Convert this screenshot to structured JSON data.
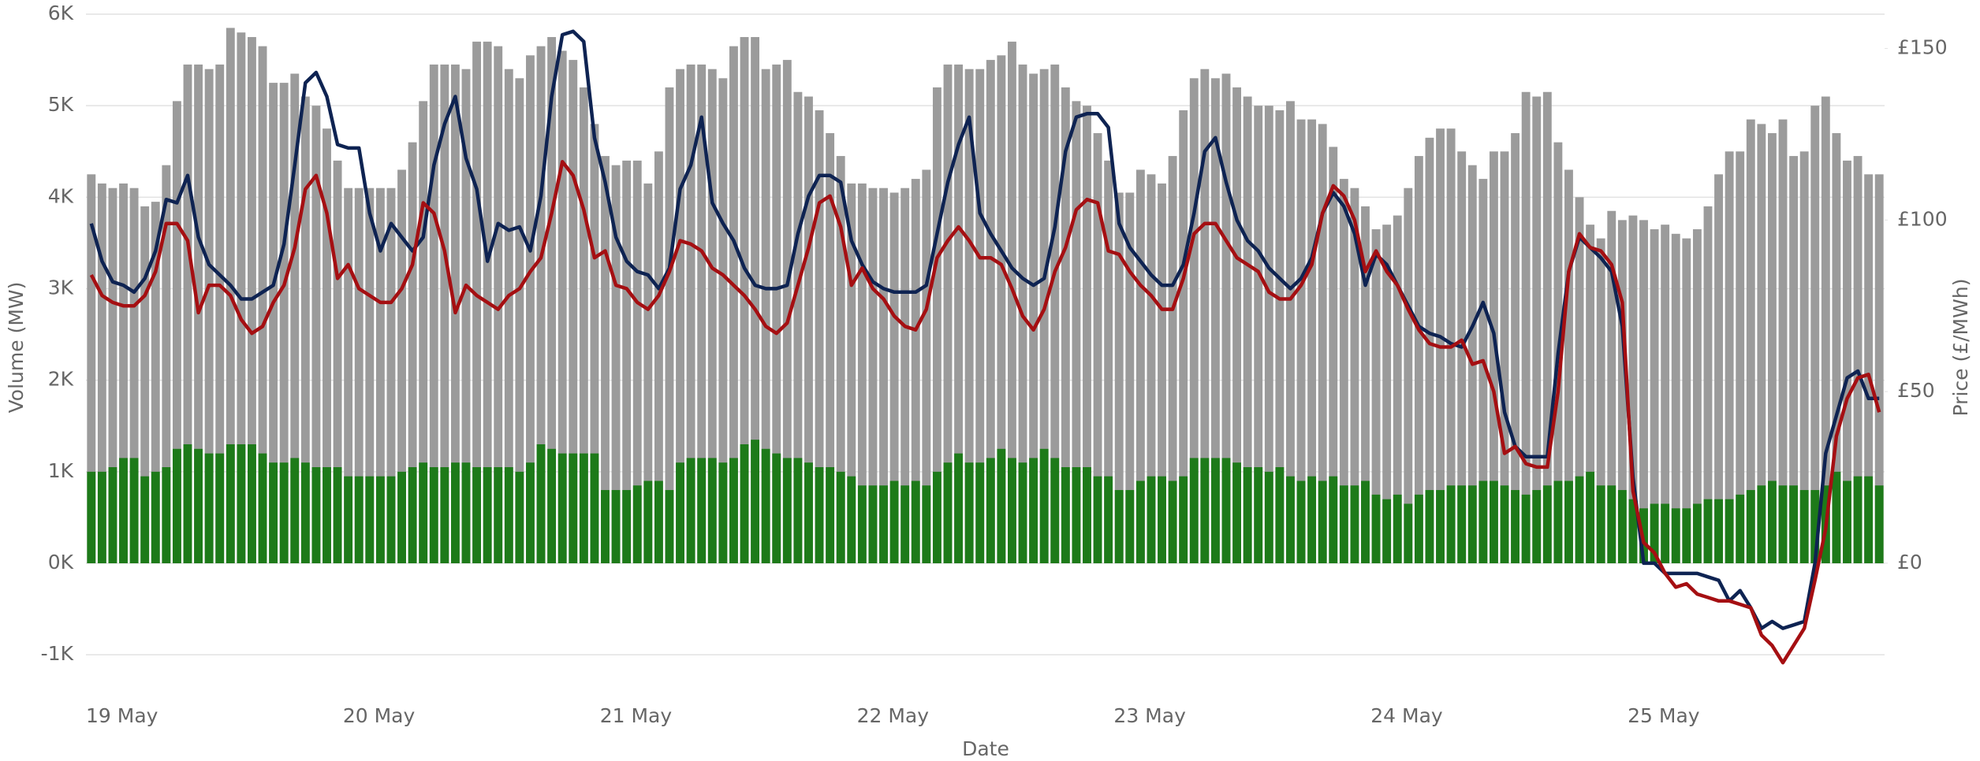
{
  "chart_data": {
    "type": "bar",
    "x_label": "Date",
    "y_label": "Volume (MW)",
    "y2_label": "Price (£/MWh)",
    "categories": [
      "19 May",
      null,
      null,
      null,
      null,
      null,
      null,
      null,
      null,
      null,
      null,
      null,
      null,
      null,
      null,
      null,
      null,
      null,
      null,
      null,
      null,
      null,
      null,
      null,
      "20 May",
      null,
      null,
      null,
      null,
      null,
      null,
      null,
      null,
      null,
      null,
      null,
      null,
      null,
      null,
      null,
      null,
      null,
      null,
      null,
      null,
      null,
      null,
      null,
      "21 May",
      null,
      null,
      null,
      null,
      null,
      null,
      null,
      null,
      null,
      null,
      null,
      null,
      null,
      null,
      null,
      null,
      null,
      null,
      null,
      null,
      null,
      null,
      null,
      "22 May",
      null,
      null,
      null,
      null,
      null,
      null,
      null,
      null,
      null,
      null,
      null,
      null,
      null,
      null,
      null,
      null,
      null,
      null,
      null,
      null,
      null,
      null,
      null,
      "23 May",
      null,
      null,
      null,
      null,
      null,
      null,
      null,
      null,
      null,
      null,
      null,
      null,
      null,
      null,
      null,
      null,
      null,
      null,
      null,
      null,
      null,
      null,
      null,
      "24 May",
      null,
      null,
      null,
      null,
      null,
      null,
      null,
      null,
      null,
      null,
      null,
      null,
      null,
      null,
      null,
      null,
      null,
      null,
      null,
      null,
      null,
      null,
      null,
      "25 May",
      null,
      null,
      null,
      null,
      null,
      null,
      null,
      null,
      null,
      null,
      null,
      null,
      null,
      null,
      null,
      null,
      null,
      null,
      null,
      null,
      null,
      null,
      null
    ],
    "ylim": [
      -1300,
      6000
    ],
    "yticks": [
      {
        "value": -1000,
        "label": "-1K"
      },
      {
        "value": 0,
        "label": "0K"
      },
      {
        "value": 1000,
        "label": "1K"
      },
      {
        "value": 2000,
        "label": "2K"
      },
      {
        "value": 3000,
        "label": "3K"
      },
      {
        "value": 4000,
        "label": "4K"
      },
      {
        "value": 5000,
        "label": "5K"
      },
      {
        "value": 6000,
        "label": "6K"
      }
    ],
    "y2lim": [
      -34.7,
      160
    ],
    "y2ticks": [
      {
        "value": 0,
        "label": "£0"
      },
      {
        "value": 50,
        "label": "£50"
      },
      {
        "value": 100,
        "label": "£100"
      },
      {
        "value": 150,
        "label": "£150"
      }
    ],
    "grid": true,
    "series": [
      {
        "type": "bar",
        "color": "#9b9b9b",
        "values": [
          4250,
          4150,
          4100,
          4150,
          4100,
          3900,
          3950,
          4350,
          5050,
          5450,
          5450,
          5400,
          5450,
          5850,
          5800,
          5750,
          5650,
          5250,
          5250,
          5350,
          5100,
          5000,
          4750,
          4400,
          4100,
          4100,
          4100,
          4100,
          4100,
          4300,
          4600,
          5050,
          5450,
          5450,
          5450,
          5400,
          5700,
          5700,
          5650,
          5400,
          5300,
          5550,
          5650,
          5750,
          5600,
          5500,
          5200,
          4800,
          4450,
          4350,
          4400,
          4400,
          4150,
          4500,
          5200,
          5400,
          5450,
          5450,
          5400,
          5300,
          5650,
          5750,
          5750,
          5400,
          5450,
          5500,
          5150,
          5100,
          4950,
          4700,
          4450,
          4150,
          4150,
          4100,
          4100,
          4050,
          4100,
          4200,
          4300,
          5200,
          5450,
          5450,
          5400,
          5400,
          5500,
          5550,
          5700,
          5450,
          5350,
          5400,
          5450,
          5200,
          5050,
          5000,
          4700,
          4400,
          4050,
          4050,
          4300,
          4250,
          4150,
          4450,
          4950,
          5300,
          5400,
          5300,
          5350,
          5200,
          5100,
          5000,
          5000,
          4950,
          5050,
          4850,
          4850,
          4800,
          4550,
          4200,
          4100,
          3900,
          3650,
          3700,
          3800,
          4100,
          4450,
          4650,
          4750,
          4750,
          4500,
          4350,
          4200,
          4500,
          4500,
          4700,
          5150,
          5100,
          5150,
          4600,
          4300,
          4000,
          3700,
          3550,
          3850,
          3750,
          3800,
          3750,
          3650,
          3700,
          3600,
          3550,
          3650,
          3900,
          4250,
          4500,
          4500,
          4850,
          4800,
          4700,
          4850,
          4450,
          4500,
          5000,
          5100,
          4700,
          4400,
          4450,
          4250,
          4250
        ]
      },
      {
        "type": "bar",
        "color": "#1d7a19",
        "values": [
          1000,
          1000,
          1050,
          1150,
          1150,
          950,
          1000,
          1050,
          1250,
          1300,
          1250,
          1200,
          1200,
          1300,
          1300,
          1300,
          1200,
          1100,
          1100,
          1150,
          1100,
          1050,
          1050,
          1050,
          950,
          950,
          950,
          950,
          950,
          1000,
          1050,
          1100,
          1050,
          1050,
          1100,
          1100,
          1050,
          1050,
          1050,
          1050,
          1000,
          1100,
          1300,
          1250,
          1200,
          1200,
          1200,
          1200,
          800,
          800,
          800,
          850,
          900,
          900,
          800,
          1100,
          1150,
          1150,
          1150,
          1100,
          1150,
          1300,
          1350,
          1250,
          1200,
          1150,
          1150,
          1100,
          1050,
          1050,
          1000,
          950,
          850,
          850,
          850,
          900,
          850,
          900,
          850,
          1000,
          1100,
          1200,
          1100,
          1100,
          1150,
          1250,
          1150,
          1100,
          1150,
          1250,
          1150,
          1050,
          1050,
          1050,
          950,
          950,
          800,
          800,
          900,
          950,
          950,
          900,
          950,
          1150,
          1150,
          1150,
          1150,
          1100,
          1050,
          1050,
          1000,
          1050,
          950,
          900,
          950,
          900,
          950,
          850,
          850,
          900,
          750,
          700,
          750,
          650,
          750,
          800,
          800,
          850,
          850,
          850,
          900,
          900,
          850,
          800,
          750,
          800,
          850,
          900,
          900,
          950,
          1000,
          850,
          850,
          800,
          700,
          600,
          650,
          650,
          600,
          600,
          650,
          700,
          700,
          700,
          750,
          800,
          850,
          900,
          850,
          850,
          800,
          800,
          850,
          1000,
          900,
          950,
          950,
          850
        ]
      },
      {
        "type": "line",
        "axis": "y2",
        "color": "#0e2352",
        "values": [
          99,
          88,
          82,
          81,
          79,
          83,
          91,
          106,
          105,
          113,
          95,
          87,
          84,
          81,
          77,
          77,
          79,
          81,
          93,
          116,
          140,
          143,
          136,
          122,
          121,
          121,
          102,
          91,
          99,
          95,
          91,
          95,
          116,
          128,
          136,
          118,
          109,
          88,
          99,
          97,
          98,
          91,
          107,
          136,
          154,
          155,
          152,
          124,
          111,
          95,
          88,
          85,
          84,
          80,
          86,
          109,
          116,
          130,
          105,
          99,
          94,
          86,
          81,
          80,
          80,
          81,
          96,
          107,
          113,
          113,
          111,
          94,
          87,
          82,
          80,
          79,
          79,
          79,
          81,
          96,
          111,
          122,
          130,
          102,
          96,
          91,
          86,
          83,
          81,
          83,
          98,
          120,
          130,
          131,
          131,
          127,
          99,
          92,
          88,
          84,
          81,
          81,
          87,
          102,
          120,
          124,
          111,
          100,
          94,
          91,
          86,
          83,
          80,
          83,
          89,
          102,
          108,
          104,
          96,
          81,
          90,
          87,
          81,
          75,
          69,
          67,
          66,
          64,
          63,
          69,
          76,
          67,
          44,
          34,
          31,
          31,
          31,
          61,
          85,
          95,
          92,
          89,
          85,
          69,
          25,
          0,
          0,
          -3,
          -3,
          -3,
          -3,
          -4,
          -5,
          -11,
          -8,
          -13,
          -19,
          -17,
          -19,
          -18,
          -17,
          0,
          32,
          43,
          54,
          56,
          48,
          48
        ]
      },
      {
        "type": "line",
        "axis": "y2",
        "color": "#a50f12",
        "values": [
          84,
          78,
          76,
          75,
          75,
          78,
          85,
          99,
          99,
          94,
          73,
          81,
          81,
          78,
          71,
          67,
          69,
          76,
          81,
          92,
          109,
          113,
          102,
          83,
          87,
          80,
          78,
          76,
          76,
          80,
          87,
          105,
          102,
          91,
          73,
          81,
          78,
          76,
          74,
          78,
          80,
          85,
          89,
          102,
          117,
          113,
          103,
          89,
          91,
          81,
          80,
          76,
          74,
          78,
          85,
          94,
          93,
          91,
          86,
          84,
          81,
          78,
          74,
          69,
          67,
          70,
          81,
          92,
          105,
          107,
          98,
          81,
          86,
          80,
          77,
          72,
          69,
          68,
          74,
          89,
          94,
          98,
          94,
          89,
          89,
          87,
          80,
          72,
          68,
          74,
          85,
          92,
          103,
          106,
          105,
          91,
          90,
          85,
          81,
          78,
          74,
          74,
          83,
          96,
          99,
          99,
          94,
          89,
          87,
          85,
          79,
          77,
          77,
          81,
          87,
          102,
          110,
          107,
          100,
          85,
          91,
          85,
          81,
          74,
          68,
          64,
          63,
          63,
          65,
          58,
          59,
          50,
          32,
          34,
          29,
          28,
          28,
          50,
          85,
          96,
          92,
          91,
          87,
          76,
          21,
          6,
          3,
          -3,
          -7,
          -6,
          -9,
          -10,
          -11,
          -11,
          -12,
          -13,
          -21,
          -24,
          -29,
          -24,
          -19,
          -5,
          10,
          37,
          48,
          54,
          55,
          44
        ]
      }
    ]
  }
}
